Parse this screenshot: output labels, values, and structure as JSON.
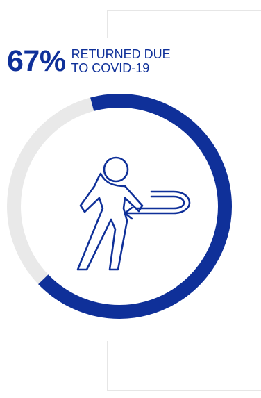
{
  "chart_data": {
    "type": "pie",
    "value_percent": 67,
    "remainder_percent": 33,
    "label_lines": [
      "RETURNED DUE",
      "TO COVID-19"
    ],
    "value_text": "67%",
    "colors": {
      "fill": "#0f3099",
      "track": "#e9e9e9",
      "icon": "#0f3099"
    }
  },
  "icons": {
    "center": "person-returning-icon"
  }
}
